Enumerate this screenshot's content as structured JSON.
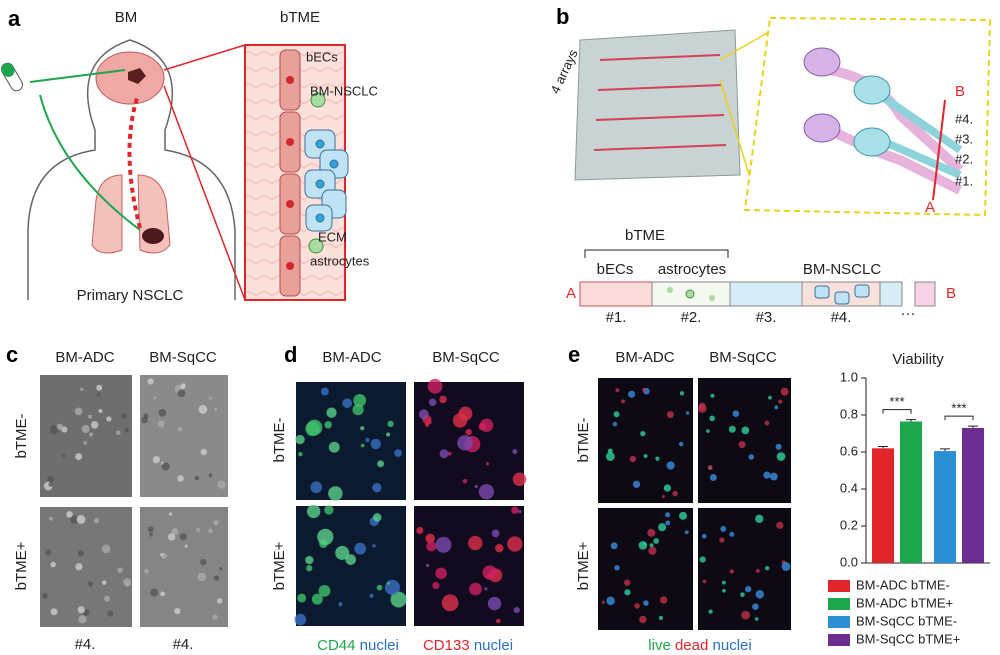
{
  "panel_a": {
    "label": "a",
    "brain": "BM",
    "title": "bTME",
    "endothelial": "bECs",
    "tumor": "BM-NSCLC",
    "matrix": "ECM",
    "astro": "astrocytes",
    "primary": "Primary NSCLC"
  },
  "panel_b": {
    "label": "b",
    "arrays": "4 arrays",
    "zoom_b": "B",
    "zoom_a": "A",
    "zoom_channels": [
      "#4.",
      "#3.",
      "#2.",
      "#1."
    ],
    "bracket": "bTME",
    "segments": [
      "bECs",
      "astrocytes",
      "BM-NSCLC"
    ],
    "end_a": "A",
    "end_b": "B",
    "channels": [
      "#1.",
      "#2.",
      "#3.",
      "#4."
    ],
    "more": "···"
  },
  "panel_c": {
    "label": "c",
    "columns": [
      "BM-ADC",
      "BM-SqCC"
    ],
    "rows": [
      "bTME-",
      "bTME+"
    ],
    "footer": [
      "#4.",
      "#4."
    ]
  },
  "panel_d": {
    "label": "d",
    "columns": [
      "BM-ADC",
      "BM-SqCC"
    ],
    "rows": [
      "bTME-",
      "bTME+"
    ],
    "stain_1": [
      "CD44",
      "nuclei"
    ],
    "stain_2": [
      "CD133",
      "nuclei"
    ]
  },
  "panel_e": {
    "label": "e",
    "columns": [
      "BM-ADC",
      "BM-SqCC"
    ],
    "rows": [
      "bTME-",
      "bTME+"
    ],
    "stain": [
      "live",
      "dead",
      "nuclei"
    ]
  },
  "chart_data": {
    "type": "bar",
    "title": "Viability",
    "series": [
      {
        "name": "BM-ADC bTME-",
        "color": "#e0262b",
        "values": [
          0.62
        ],
        "errors": [
          0.01
        ]
      },
      {
        "name": "BM-ADC bTME+",
        "color": "#1ea64c",
        "values": [
          0.765
        ],
        "errors": [
          0.01
        ]
      },
      {
        "name": "BM-SqCC bTME-",
        "color": "#2b8fd4",
        "values": [
          0.605
        ],
        "errors": [
          0.012
        ]
      },
      {
        "name": "BM-SqCC bTME+",
        "color": "#6b2d90",
        "values": [
          0.73
        ],
        "errors": [
          0.01
        ]
      }
    ],
    "annotations": [
      "***",
      "***"
    ],
    "ylim": [
      0,
      1
    ],
    "yticks": [
      {
        "value": 0,
        "label": "0.0"
      },
      0.2,
      0.4,
      0.6,
      0.8,
      {
        "value": 1,
        "label": "1.0"
      }
    ]
  }
}
